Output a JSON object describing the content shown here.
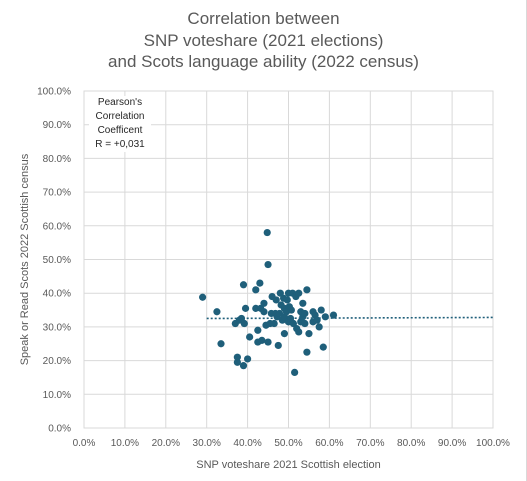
{
  "chart_data": {
    "type": "scatter",
    "title": [
      "Correlation between",
      "SNP voteshare (2021 elections)",
      "and Scots language ability (2022 census)"
    ],
    "xlabel": "SNP voteshare 2021 Scottish election",
    "ylabel": "Speak or Read Scots 2022 Scottish census",
    "xlim": [
      0,
      1
    ],
    "ylim": [
      0,
      1
    ],
    "x_ticks": [
      "0.0%",
      "10.0%",
      "20.0%",
      "30.0%",
      "40.0%",
      "50.0%",
      "60.0%",
      "70.0%",
      "80.0%",
      "90.0%",
      "100.0%"
    ],
    "y_ticks": [
      "0.0%",
      "10.0%",
      "20.0%",
      "30.0%",
      "40.0%",
      "50.0%",
      "60.0%",
      "70.0%",
      "80.0%",
      "90.0%",
      "100.0%"
    ],
    "grid": true,
    "point_color": "#1f5f7a",
    "trendline": {
      "style": "dotted",
      "color": "#1f5f7a",
      "x": [
        0.3,
        1.0
      ],
      "y": [
        0.325,
        0.328
      ]
    },
    "annotation": [
      "Pearson's",
      "Correlation",
      "Coefficent",
      "R = +0,031"
    ],
    "points": [
      [
        0.29,
        0.388
      ],
      [
        0.325,
        0.345
      ],
      [
        0.335,
        0.25
      ],
      [
        0.37,
        0.31
      ],
      [
        0.375,
        0.195
      ],
      [
        0.375,
        0.21
      ],
      [
        0.38,
        0.32
      ],
      [
        0.385,
        0.325
      ],
      [
        0.39,
        0.425
      ],
      [
        0.39,
        0.185
      ],
      [
        0.392,
        0.31
      ],
      [
        0.395,
        0.355
      ],
      [
        0.4,
        0.205
      ],
      [
        0.405,
        0.27
      ],
      [
        0.42,
        0.41
      ],
      [
        0.42,
        0.355
      ],
      [
        0.425,
        0.29
      ],
      [
        0.425,
        0.255
      ],
      [
        0.43,
        0.43
      ],
      [
        0.432,
        0.355
      ],
      [
        0.435,
        0.26
      ],
      [
        0.44,
        0.37
      ],
      [
        0.44,
        0.345
      ],
      [
        0.445,
        0.305
      ],
      [
        0.448,
        0.58
      ],
      [
        0.45,
        0.485
      ],
      [
        0.45,
        0.255
      ],
      [
        0.455,
        0.31
      ],
      [
        0.458,
        0.34
      ],
      [
        0.46,
        0.39
      ],
      [
        0.465,
        0.31
      ],
      [
        0.468,
        0.34
      ],
      [
        0.47,
        0.38
      ],
      [
        0.472,
        0.33
      ],
      [
        0.475,
        0.245
      ],
      [
        0.478,
        0.34
      ],
      [
        0.48,
        0.4
      ],
      [
        0.482,
        0.365
      ],
      [
        0.485,
        0.32
      ],
      [
        0.488,
        0.385
      ],
      [
        0.49,
        0.355
      ],
      [
        0.49,
        0.33
      ],
      [
        0.49,
        0.28
      ],
      [
        0.495,
        0.345
      ],
      [
        0.497,
        0.38
      ],
      [
        0.5,
        0.4
      ],
      [
        0.5,
        0.315
      ],
      [
        0.502,
        0.36
      ],
      [
        0.505,
        0.325
      ],
      [
        0.507,
        0.35
      ],
      [
        0.51,
        0.4
      ],
      [
        0.512,
        0.31
      ],
      [
        0.515,
        0.165
      ],
      [
        0.518,
        0.39
      ],
      [
        0.52,
        0.295
      ],
      [
        0.525,
        0.285
      ],
      [
        0.525,
        0.4
      ],
      [
        0.53,
        0.345
      ],
      [
        0.53,
        0.315
      ],
      [
        0.535,
        0.33
      ],
      [
        0.535,
        0.37
      ],
      [
        0.54,
        0.31
      ],
      [
        0.54,
        0.34
      ],
      [
        0.545,
        0.41
      ],
      [
        0.545,
        0.225
      ],
      [
        0.55,
        0.28
      ],
      [
        0.56,
        0.315
      ],
      [
        0.56,
        0.345
      ],
      [
        0.565,
        0.335
      ],
      [
        0.57,
        0.32
      ],
      [
        0.575,
        0.3
      ],
      [
        0.58,
        0.35
      ],
      [
        0.585,
        0.24
      ],
      [
        0.59,
        0.33
      ],
      [
        0.61,
        0.335
      ]
    ]
  }
}
